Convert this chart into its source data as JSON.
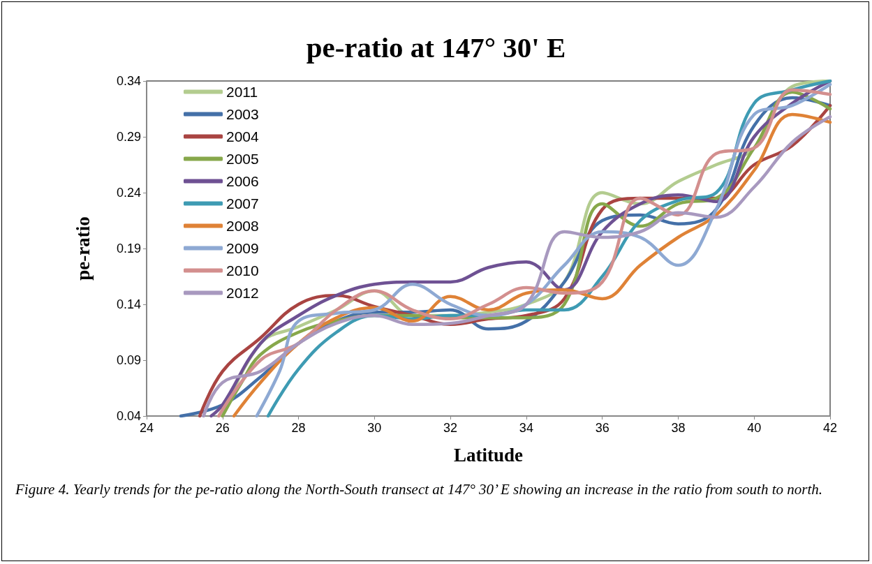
{
  "chart_data": {
    "type": "line",
    "title": "pe-ratio at 147° 30' E",
    "xlabel": "Latitude",
    "ylabel": "pe-ratio",
    "annotations": [
      "Figure 4. Yearly trends for the pe-ratio along the North-South transect at 147° 30’ E showing an increase in the ratio from south to north."
    ],
    "xlim": [
      24,
      42
    ],
    "xticks": [
      24,
      26,
      28,
      30,
      32,
      34,
      36,
      38,
      40,
      42
    ],
    "ylim": [
      0.04,
      0.34
    ],
    "yticks": [
      0.04,
      0.09,
      0.14,
      0.19,
      0.24,
      0.29,
      0.34
    ],
    "grid": false,
    "legend": "top left",
    "marker": "none",
    "line_style": "solid",
    "series": [
      {
        "name": "2011",
        "color": "#b3cc8f",
        "x": [
          26,
          27,
          28,
          29,
          30,
          31,
          32,
          33,
          34,
          35,
          36,
          37,
          38,
          39,
          40,
          41,
          42
        ],
        "values": [
          0.04,
          0.105,
          0.12,
          0.135,
          0.152,
          0.13,
          0.13,
          0.133,
          0.14,
          0.16,
          0.24,
          0.23,
          0.25,
          0.265,
          0.28,
          0.335,
          0.34
        ]
      },
      {
        "name": "2003",
        "color": "#4470a8",
        "x": [
          24.9,
          26,
          27,
          28,
          29,
          30,
          31,
          32,
          33,
          34,
          35,
          36,
          37,
          38,
          39,
          40,
          41,
          42
        ],
        "values": [
          0.04,
          0.05,
          0.075,
          0.105,
          0.125,
          0.133,
          0.133,
          0.135,
          0.118,
          0.125,
          0.16,
          0.215,
          0.22,
          0.212,
          0.225,
          0.3,
          0.325,
          0.318
        ]
      },
      {
        "name": "2004",
        "color": "#a94442",
        "x": [
          25.4,
          26,
          27,
          28,
          29,
          30,
          31,
          32,
          33,
          34,
          35,
          36,
          37,
          38,
          39,
          40,
          41,
          42
        ],
        "values": [
          0.04,
          0.08,
          0.11,
          0.14,
          0.148,
          0.138,
          0.13,
          0.122,
          0.127,
          0.13,
          0.145,
          0.225,
          0.235,
          0.235,
          0.235,
          0.265,
          0.282,
          0.318
        ]
      },
      {
        "name": "2005",
        "color": "#87a84b",
        "x": [
          26,
          26.5,
          27,
          28,
          29,
          30,
          31,
          32,
          33,
          34,
          35,
          36,
          37,
          38,
          39,
          40,
          41,
          42
        ],
        "values": [
          0.04,
          0.07,
          0.095,
          0.115,
          0.125,
          0.13,
          0.13,
          0.128,
          0.128,
          0.128,
          0.14,
          0.23,
          0.21,
          0.23,
          0.235,
          0.28,
          0.33,
          0.315
        ]
      },
      {
        "name": "2006",
        "color": "#6e5193",
        "x": [
          25.7,
          26,
          27,
          28,
          29,
          30,
          31,
          32,
          33,
          34,
          35,
          36,
          37,
          38,
          39,
          40,
          41,
          42
        ],
        "values": [
          0.04,
          0.05,
          0.105,
          0.13,
          0.148,
          0.158,
          0.16,
          0.16,
          0.173,
          0.178,
          0.153,
          0.205,
          0.23,
          0.238,
          0.232,
          0.29,
          0.32,
          0.34
        ]
      },
      {
        "name": "2007",
        "color": "#3e9bb3",
        "x": [
          27.2,
          28,
          29,
          30,
          31,
          32,
          33,
          34,
          35,
          36,
          37,
          38,
          39,
          40,
          41,
          42
        ],
        "values": [
          0.04,
          0.082,
          0.115,
          0.13,
          0.127,
          0.13,
          0.13,
          0.135,
          0.135,
          0.165,
          0.215,
          0.233,
          0.24,
          0.32,
          0.332,
          0.34
        ]
      },
      {
        "name": "2008",
        "color": "#df8236",
        "x": [
          26.3,
          27,
          28,
          29,
          30,
          31,
          32,
          33,
          34,
          35,
          36,
          37,
          38,
          39,
          40,
          41,
          42
        ],
        "values": [
          0.04,
          0.07,
          0.105,
          0.128,
          0.137,
          0.125,
          0.147,
          0.135,
          0.15,
          0.153,
          0.145,
          0.175,
          0.2,
          0.22,
          0.26,
          0.31,
          0.303
        ]
      },
      {
        "name": "2009",
        "color": "#8ea9d3",
        "x": [
          26.9,
          27.5,
          28,
          29,
          30,
          31,
          32,
          33,
          34,
          35,
          36,
          37,
          38,
          39,
          40,
          41,
          42
        ],
        "values": [
          0.04,
          0.08,
          0.125,
          0.132,
          0.135,
          0.158,
          0.14,
          0.13,
          0.14,
          0.175,
          0.205,
          0.2,
          0.175,
          0.225,
          0.31,
          0.318,
          0.337
        ]
      },
      {
        "name": "2010",
        "color": "#d38f8e",
        "x": [
          25.9,
          27,
          28,
          29,
          30,
          31,
          32,
          33,
          34,
          35,
          36,
          37,
          38,
          39,
          40,
          41,
          42
        ],
        "values": [
          0.04,
          0.09,
          0.105,
          0.135,
          0.152,
          0.135,
          0.127,
          0.14,
          0.155,
          0.15,
          0.16,
          0.235,
          0.22,
          0.275,
          0.28,
          0.332,
          0.328
        ]
      },
      {
        "name": "2012",
        "color": "#a899bf",
        "x": [
          25.5,
          26,
          27,
          28,
          29,
          30,
          31,
          32,
          33,
          34,
          35,
          36,
          37,
          38,
          39,
          40,
          41,
          42
        ],
        "values": [
          0.04,
          0.07,
          0.08,
          0.105,
          0.123,
          0.13,
          0.122,
          0.123,
          0.13,
          0.14,
          0.205,
          0.2,
          0.205,
          0.222,
          0.218,
          0.245,
          0.285,
          0.308
        ]
      }
    ]
  }
}
